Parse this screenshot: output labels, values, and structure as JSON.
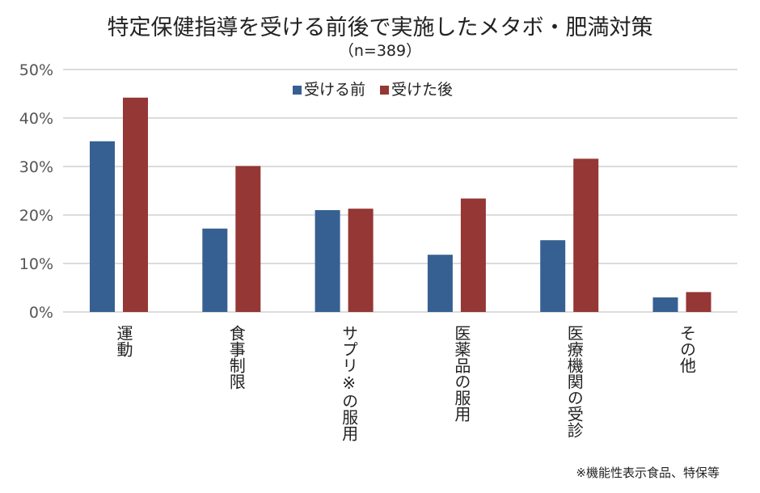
{
  "chart_data": {
    "type": "bar",
    "title": "特定保健指導を受ける前後で実施したメタボ・肥満対策",
    "subtitle": "（n=389）",
    "categories": [
      "運動",
      "食事制限",
      "サプリ※の服用",
      "医薬品の服用",
      "医療機関の受診",
      "その他"
    ],
    "series": [
      {
        "name": "受ける前",
        "color": "#376092",
        "values": [
          35.2,
          17.2,
          21.0,
          11.8,
          14.8,
          3.0
        ]
      },
      {
        "name": "受けた後",
        "color": "#953735",
        "values": [
          44.2,
          30.1,
          21.3,
          23.4,
          31.6,
          4.1
        ]
      }
    ],
    "ylim": [
      0,
      50
    ],
    "yticks": [
      "0%",
      "10%",
      "20%",
      "30%",
      "40%",
      "50%"
    ],
    "grid": true,
    "legend": "top-center",
    "footnote": "※機能性表示食品、特保等"
  }
}
